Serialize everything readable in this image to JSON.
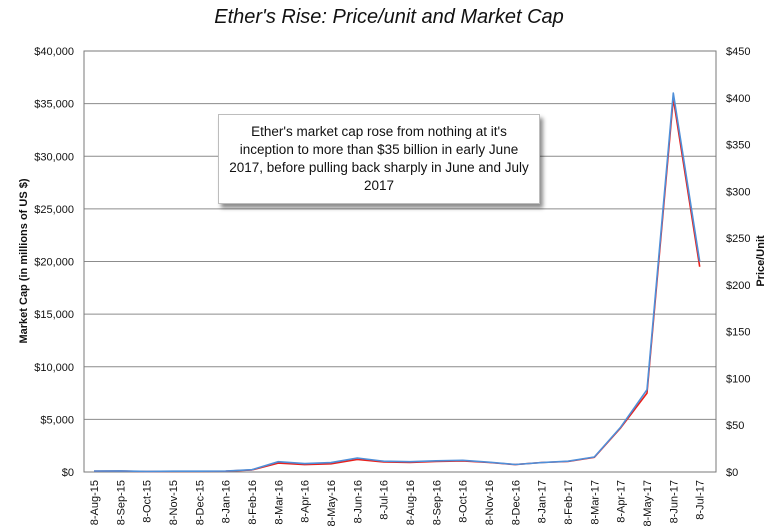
{
  "chart_data": {
    "type": "line",
    "title": "Ether's Rise: Price/unit and Market Cap",
    "ylabel_left": "Market Cap (in millions of US $)",
    "ylabel_right": "Price/Unit",
    "ylim_left": [
      0,
      40000
    ],
    "ylim_right": [
      0,
      450
    ],
    "yticks_left": [
      "$0",
      "$5,000",
      "$10,000",
      "$15,000",
      "$20,000",
      "$25,000",
      "$30,000",
      "$35,000",
      "$40,000"
    ],
    "yticks_right": [
      "$0",
      "$50",
      "$100",
      "$150",
      "$200",
      "$250",
      "$300",
      "$350",
      "$400",
      "$450"
    ],
    "x_categories": [
      "8-Aug-15",
      "8-Sep-15",
      "8-Oct-15",
      "8-Nov-15",
      "8-Dec-15",
      "8-Jan-16",
      "8-Feb-16",
      "8-Mar-16",
      "8-Apr-16",
      "8-May-16",
      "8-Jun-16",
      "8-Jul-16",
      "8-Aug-16",
      "8-Sep-16",
      "8-Oct-16",
      "8-Nov-16",
      "8-Dec-16",
      "8-Jan-17",
      "8-Feb-17",
      "8-Mar-17",
      "8-Apr-17",
      "8-May-17",
      "8-Jun-17",
      "8-Jul-17"
    ],
    "grid": true,
    "annotation": "Ether's market cap rose from nothing at it's inception to more than $35 billion in early June 2017, before pulling back sharply in June and July 2017",
    "series": [
      {
        "color": "#e8201c",
        "axis": "left",
        "points": [
          [
            "8-Aug-15",
            80
          ],
          [
            "8-Sep-15",
            90
          ],
          [
            "8-Oct-15",
            50
          ],
          [
            "8-Nov-15",
            70
          ],
          [
            "8-Dec-15",
            70
          ],
          [
            "8-Jan-16",
            80
          ],
          [
            "8-Feb-16",
            200
          ],
          [
            "8-Mar-16",
            850
          ],
          [
            "8-Apr-16",
            700
          ],
          [
            "8-May-16",
            780
          ],
          [
            "8-Jun-16",
            1200
          ],
          [
            "8-Jul-16",
            950
          ],
          [
            "8-Aug-16",
            900
          ],
          [
            "8-Sep-16",
            1000
          ],
          [
            "8-Oct-16",
            1050
          ],
          [
            "8-Nov-16",
            900
          ],
          [
            "8-Dec-16",
            700
          ],
          [
            "8-Jan-17",
            900
          ],
          [
            "8-Feb-17",
            1000
          ],
          [
            "8-Mar-17",
            1400
          ],
          [
            "8-Apr-17",
            4200
          ],
          [
            "8-May-17",
            7500
          ],
          [
            "8-Jun-17",
            35500
          ],
          [
            "8-Jul-17",
            19500
          ]
        ]
      },
      {
        "color": "#4f8fd8",
        "axis": "right",
        "points": [
          [
            "8-Aug-15",
            1.0
          ],
          [
            "8-Sep-15",
            1.2
          ],
          [
            "8-Oct-15",
            0.6
          ],
          [
            "8-Nov-15",
            0.9
          ],
          [
            "8-Dec-15",
            0.9
          ],
          [
            "8-Jan-16",
            1.0
          ],
          [
            "8-Feb-16",
            2.5
          ],
          [
            "8-Mar-16",
            11
          ],
          [
            "8-Apr-16",
            9
          ],
          [
            "8-May-16",
            10
          ],
          [
            "8-Jun-16",
            15
          ],
          [
            "8-Jul-16",
            11.5
          ],
          [
            "8-Aug-16",
            11
          ],
          [
            "8-Sep-16",
            12
          ],
          [
            "8-Oct-16",
            12.5
          ],
          [
            "8-Nov-16",
            10.5
          ],
          [
            "8-Dec-16",
            8
          ],
          [
            "8-Jan-17",
            10
          ],
          [
            "8-Feb-17",
            11.5
          ],
          [
            "8-Mar-17",
            16
          ],
          [
            "8-Apr-17",
            48
          ],
          [
            "8-May-17",
            88
          ],
          [
            "8-Jun-17",
            405
          ],
          [
            "8-Jul-17",
            225
          ]
        ]
      }
    ]
  }
}
